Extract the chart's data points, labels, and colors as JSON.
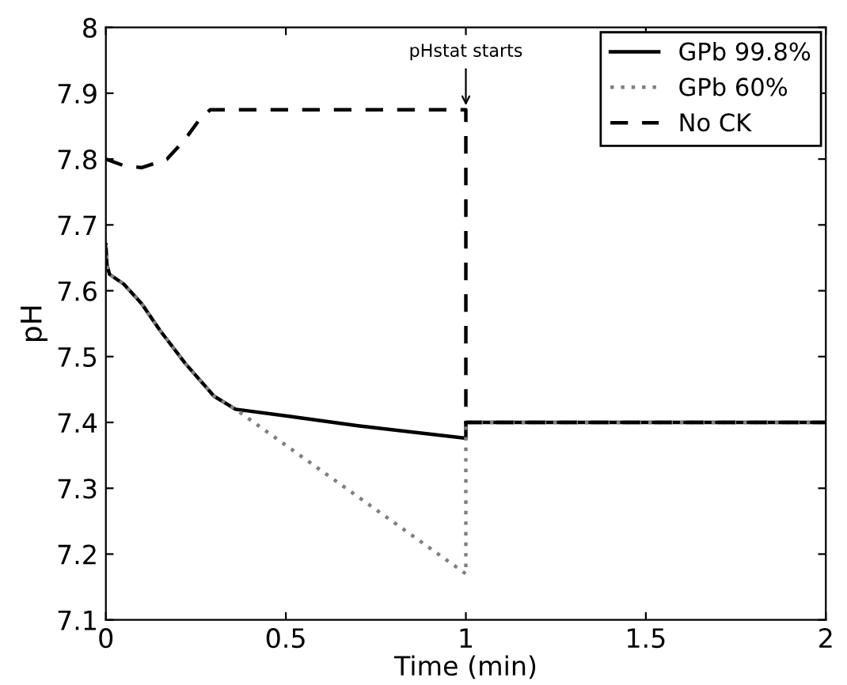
{
  "chart_data": {
    "type": "line",
    "xlabel": "Time (min)",
    "ylabel": "pH",
    "xlim": [
      0,
      2
    ],
    "xticks": [
      0,
      0.5,
      1,
      1.5,
      2
    ],
    "ylim": [
      7.1,
      8
    ],
    "yticks": [
      7.1,
      7.2,
      7.3,
      7.4,
      7.5,
      7.6,
      7.7,
      7.8,
      7.9,
      8
    ],
    "grid": false,
    "legend": "top right",
    "annotations": [
      {
        "text": "pHstat starts",
        "x": 1,
        "y": 7.875
      }
    ],
    "series": [
      {
        "name": "GPb 99.8%",
        "color": "#000000",
        "line_style": "solid",
        "x": [
          0,
          0.003,
          0.01,
          0.05,
          0.1,
          0.15,
          0.22,
          0.3,
          0.36,
          0.5,
          0.7,
          1.0,
          1.0,
          2.0
        ],
        "values": [
          7.67,
          7.64,
          7.625,
          7.61,
          7.58,
          7.54,
          7.49,
          7.44,
          7.42,
          7.41,
          7.395,
          7.376,
          7.4,
          7.4
        ]
      },
      {
        "name": "GPb 60%",
        "color": "#808080",
        "line_style": "dotted",
        "x": [
          0,
          0.003,
          0.01,
          0.05,
          0.1,
          0.15,
          0.22,
          0.3,
          0.36,
          1.0,
          1.0,
          2.0
        ],
        "values": [
          7.67,
          7.64,
          7.625,
          7.61,
          7.58,
          7.54,
          7.49,
          7.44,
          7.42,
          7.17,
          7.4,
          7.4
        ]
      },
      {
        "name": "No CK",
        "color": "#000000",
        "line_style": "dashed",
        "x": [
          0,
          0.05,
          0.1,
          0.17,
          0.22,
          0.26,
          0.29,
          1.0,
          1.0,
          2.0
        ],
        "values": [
          7.8,
          7.79,
          7.787,
          7.8,
          7.83,
          7.86,
          7.875,
          7.875,
          7.4,
          7.4
        ]
      }
    ]
  }
}
